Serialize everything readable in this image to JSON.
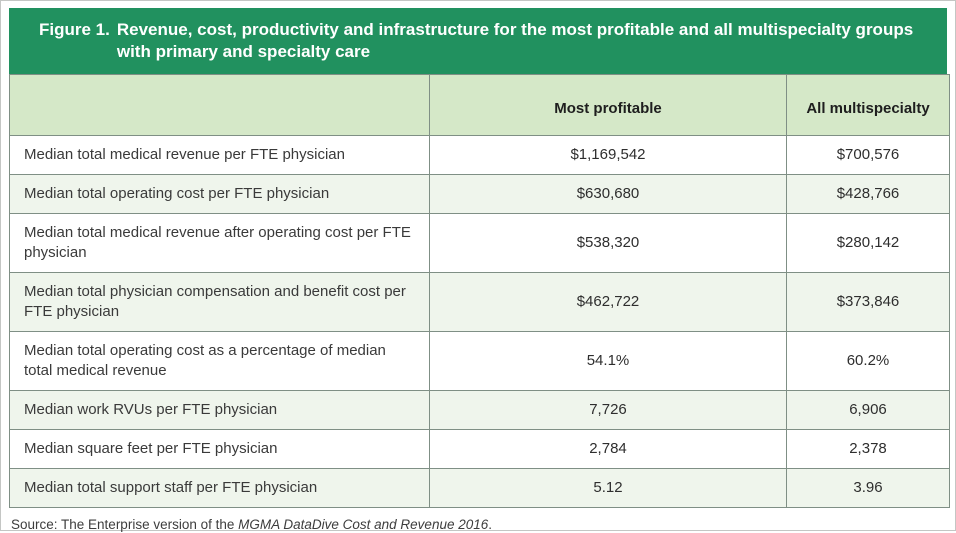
{
  "figure": {
    "title_prefix": "Figure 1.",
    "title_line1": "Revenue, cost, productivity and infrastructure for the most profitable and all multispecialty groups",
    "title_line2": "with primary and specialty care"
  },
  "table": {
    "columns": [
      "",
      "Most profitable",
      "All multispecialty"
    ],
    "rows": [
      {
        "label": "Median total medical revenue per FTE physician",
        "most_profitable": "$1,169,542",
        "all_multispecialty": "$700,576"
      },
      {
        "label": "Median total operating cost per FTE physician",
        "most_profitable": "$630,680",
        "all_multispecialty": "$428,766"
      },
      {
        "label": "Median total medical revenue after operating cost per FTE physician",
        "most_profitable": "$538,320",
        "all_multispecialty": "$280,142"
      },
      {
        "label": "Median total physician compensation and benefit cost per FTE physician",
        "most_profitable": "$462,722",
        "all_multispecialty": "$373,846"
      },
      {
        "label": "Median total operating cost as a percentage of median total medical revenue",
        "most_profitable": "54.1%",
        "all_multispecialty": "60.2%"
      },
      {
        "label": "Median work RVUs per FTE physician",
        "most_profitable": "7,726",
        "all_multispecialty": "6,906"
      },
      {
        "label": "Median square feet per FTE physician",
        "most_profitable": "2,784",
        "all_multispecialty": "2,378"
      },
      {
        "label": "Median total support staff per FTE physician",
        "most_profitable": "5.12",
        "all_multispecialty": "3.96"
      }
    ]
  },
  "source": {
    "prefix": "Source: The Enterprise version of the ",
    "italic": "MGMA DataDive Cost and Revenue 2016",
    "suffix": "."
  },
  "colors": {
    "title_bar_green": "#21915f",
    "column_header_green": "#d5e8c8",
    "zebra_row_tint": "#eff5ec",
    "grid_line": "#7f8f85",
    "title_text": "#ffffff",
    "body_text": "#333333"
  }
}
